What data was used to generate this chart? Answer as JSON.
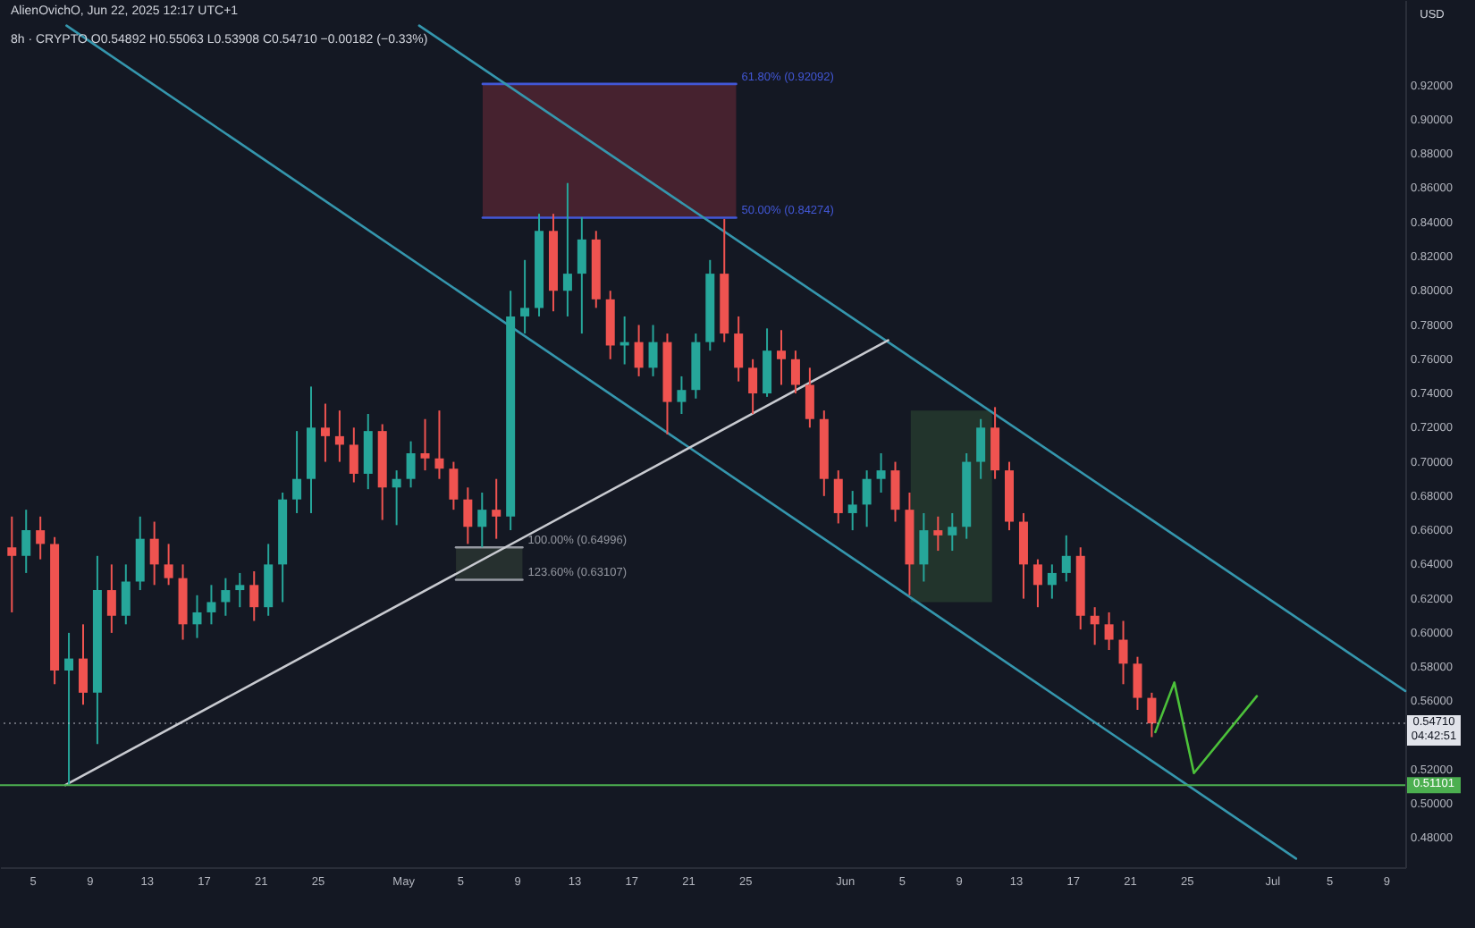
{
  "chart_data": {
    "type": "candlestick",
    "title": "AlienOvichO, Jun 22, 2025 12:17 UTC+1",
    "subtitle": "8h · CRYPTO  O0.54892 H0.55063 L0.53908 C0.54710 −0.00182 (−0.33%)",
    "ylabel": "USD",
    "xlim": [
      "2025-04-02T16:00",
      "2025-07-10T07:00"
    ],
    "ylim": [
      0.463,
      0.97
    ],
    "xticks": [
      {
        "value": "2025-04-05",
        "label": "5"
      },
      {
        "value": "2025-04-09",
        "label": "9"
      },
      {
        "value": "2025-04-13",
        "label": "13"
      },
      {
        "value": "2025-04-17",
        "label": "17"
      },
      {
        "value": "2025-04-21",
        "label": "21"
      },
      {
        "value": "2025-04-25",
        "label": "25"
      },
      {
        "value": "2025-05-01",
        "label": "May"
      },
      {
        "value": "2025-05-05",
        "label": "5"
      },
      {
        "value": "2025-05-09",
        "label": "9"
      },
      {
        "value": "2025-05-13",
        "label": "13"
      },
      {
        "value": "2025-05-17",
        "label": "17"
      },
      {
        "value": "2025-05-21",
        "label": "21"
      },
      {
        "value": "2025-05-25",
        "label": "25"
      },
      {
        "value": "2025-06-01",
        "label": "Jun"
      },
      {
        "value": "2025-06-05",
        "label": "5"
      },
      {
        "value": "2025-06-09",
        "label": "9"
      },
      {
        "value": "2025-06-13",
        "label": "13"
      },
      {
        "value": "2025-06-17",
        "label": "17"
      },
      {
        "value": "2025-06-21",
        "label": "21"
      },
      {
        "value": "2025-06-25",
        "label": "25"
      },
      {
        "value": "2025-07-01",
        "label": "Jul"
      },
      {
        "value": "2025-07-05",
        "label": "5"
      },
      {
        "value": "2025-07-09",
        "label": "9"
      }
    ],
    "yticks": [
      {
        "value": 0.48,
        "label": "0.48000"
      },
      {
        "value": 0.5,
        "label": "0.50000"
      },
      {
        "value": 0.52,
        "label": "0.52000"
      },
      {
        "value": 0.56,
        "label": "0.56000"
      },
      {
        "value": 0.58,
        "label": "0.58000"
      },
      {
        "value": 0.6,
        "label": "0.60000"
      },
      {
        "value": 0.62,
        "label": "0.62000"
      },
      {
        "value": 0.64,
        "label": "0.64000"
      },
      {
        "value": 0.66,
        "label": "0.66000"
      },
      {
        "value": 0.68,
        "label": "0.68000"
      },
      {
        "value": 0.7,
        "label": "0.70000"
      },
      {
        "value": 0.72,
        "label": "0.72000"
      },
      {
        "value": 0.74,
        "label": "0.74000"
      },
      {
        "value": 0.76,
        "label": "0.76000"
      },
      {
        "value": 0.78,
        "label": "0.78000"
      },
      {
        "value": 0.8,
        "label": "0.80000"
      },
      {
        "value": 0.82,
        "label": "0.82000"
      },
      {
        "value": 0.84,
        "label": "0.84000"
      },
      {
        "value": 0.86,
        "label": "0.86000"
      },
      {
        "value": 0.88,
        "label": "0.88000"
      },
      {
        "value": 0.9,
        "label": "0.90000"
      },
      {
        "value": 0.92,
        "label": "0.92000"
      }
    ],
    "ref_lines": [
      {
        "axis": "y",
        "value": 0.51101,
        "label": "0.51101",
        "color": "#4caf50"
      },
      {
        "axis": "y",
        "value": 0.5471,
        "label": "0.54710\n04:42:51",
        "color": "#e1e3ea",
        "line_style": "dotted"
      }
    ],
    "series": [
      {
        "type": "candlestick",
        "x": [
          "2025-04-03T12:00",
          "2025-04-04T12:00",
          "2025-04-05T12:00",
          "2025-04-06T12:00",
          "2025-04-07T12:00",
          "2025-04-08T12:00",
          "2025-04-09T12:00",
          "2025-04-10T12:00",
          "2025-04-11T12:00",
          "2025-04-12T12:00",
          "2025-04-13T12:00",
          "2025-04-14T12:00",
          "2025-04-15T12:00",
          "2025-04-16T12:00",
          "2025-04-17T12:00",
          "2025-04-18T12:00",
          "2025-04-19T12:00",
          "2025-04-20T12:00",
          "2025-04-21T12:00",
          "2025-04-22T12:00",
          "2025-04-23T12:00",
          "2025-04-24T12:00",
          "2025-04-25T12:00",
          "2025-04-26T12:00",
          "2025-04-27T12:00",
          "2025-04-28T12:00",
          "2025-04-29T12:00",
          "2025-04-30T12:00",
          "2025-05-01T12:00",
          "2025-05-02T12:00",
          "2025-05-03T12:00",
          "2025-05-04T12:00",
          "2025-05-05T12:00",
          "2025-05-06T12:00",
          "2025-05-07T12:00",
          "2025-05-08T12:00",
          "2025-05-09T12:00",
          "2025-05-10T12:00",
          "2025-05-11T12:00",
          "2025-05-12T12:00",
          "2025-05-13T12:00",
          "2025-05-14T12:00",
          "2025-05-15T12:00",
          "2025-05-16T12:00",
          "2025-05-17T12:00",
          "2025-05-18T12:00",
          "2025-05-19T12:00",
          "2025-05-20T12:00",
          "2025-05-21T12:00",
          "2025-05-22T12:00",
          "2025-05-23T12:00",
          "2025-05-24T12:00",
          "2025-05-25T12:00",
          "2025-05-26T12:00",
          "2025-05-27T12:00",
          "2025-05-28T12:00",
          "2025-05-29T12:00",
          "2025-05-30T12:00",
          "2025-05-31T12:00",
          "2025-06-01T12:00",
          "2025-06-02T12:00",
          "2025-06-03T12:00",
          "2025-06-04T12:00",
          "2025-06-05T12:00",
          "2025-06-06T12:00",
          "2025-06-07T12:00",
          "2025-06-08T12:00",
          "2025-06-09T12:00",
          "2025-06-10T12:00",
          "2025-06-11T12:00",
          "2025-06-12T12:00",
          "2025-06-13T12:00",
          "2025-06-14T12:00",
          "2025-06-15T12:00",
          "2025-06-16T12:00",
          "2025-06-17T12:00",
          "2025-06-18T12:00",
          "2025-06-19T12:00",
          "2025-06-20T12:00",
          "2025-06-21T12:00",
          "2025-06-22T12:00"
        ],
        "ohlc": [
          [
            0.65,
            0.668,
            0.612,
            0.645
          ],
          [
            0.645,
            0.672,
            0.635,
            0.66
          ],
          [
            0.66,
            0.668,
            0.643,
            0.652
          ],
          [
            0.652,
            0.656,
            0.57,
            0.578
          ],
          [
            0.578,
            0.6,
            0.51101,
            0.585
          ],
          [
            0.585,
            0.605,
            0.558,
            0.565
          ],
          [
            0.565,
            0.645,
            0.535,
            0.625
          ],
          [
            0.625,
            0.64,
            0.6,
            0.61
          ],
          [
            0.61,
            0.64,
            0.605,
            0.63
          ],
          [
            0.63,
            0.668,
            0.625,
            0.655
          ],
          [
            0.655,
            0.665,
            0.628,
            0.64
          ],
          [
            0.64,
            0.652,
            0.628,
            0.632
          ],
          [
            0.632,
            0.64,
            0.596,
            0.605
          ],
          [
            0.605,
            0.622,
            0.597,
            0.612
          ],
          [
            0.612,
            0.628,
            0.605,
            0.618
          ],
          [
            0.618,
            0.632,
            0.61,
            0.625
          ],
          [
            0.625,
            0.635,
            0.615,
            0.628
          ],
          [
            0.628,
            0.636,
            0.607,
            0.615
          ],
          [
            0.615,
            0.652,
            0.61,
            0.64
          ],
          [
            0.64,
            0.682,
            0.618,
            0.678
          ],
          [
            0.678,
            0.718,
            0.67,
            0.69
          ],
          [
            0.69,
            0.744,
            0.67,
            0.72
          ],
          [
            0.72,
            0.734,
            0.7,
            0.715
          ],
          [
            0.715,
            0.73,
            0.7,
            0.71
          ],
          [
            0.71,
            0.72,
            0.688,
            0.693
          ],
          [
            0.693,
            0.728,
            0.684,
            0.718
          ],
          [
            0.718,
            0.722,
            0.666,
            0.685
          ],
          [
            0.685,
            0.695,
            0.663,
            0.69
          ],
          [
            0.69,
            0.712,
            0.685,
            0.705
          ],
          [
            0.705,
            0.725,
            0.695,
            0.702
          ],
          [
            0.702,
            0.73,
            0.69,
            0.696
          ],
          [
            0.696,
            0.7,
            0.672,
            0.678
          ],
          [
            0.678,
            0.685,
            0.652,
            0.662
          ],
          [
            0.662,
            0.682,
            0.65,
            0.672
          ],
          [
            0.672,
            0.69,
            0.655,
            0.668
          ],
          [
            0.668,
            0.8,
            0.66,
            0.785
          ],
          [
            0.785,
            0.818,
            0.775,
            0.79
          ],
          [
            0.79,
            0.845,
            0.785,
            0.835
          ],
          [
            0.835,
            0.845,
            0.788,
            0.8
          ],
          [
            0.8,
            0.863,
            0.785,
            0.81
          ],
          [
            0.81,
            0.843,
            0.775,
            0.83
          ],
          [
            0.83,
            0.835,
            0.79,
            0.795
          ],
          [
            0.795,
            0.8,
            0.76,
            0.768
          ],
          [
            0.768,
            0.785,
            0.757,
            0.77
          ],
          [
            0.77,
            0.78,
            0.75,
            0.755
          ],
          [
            0.755,
            0.78,
            0.75,
            0.77
          ],
          [
            0.77,
            0.775,
            0.716,
            0.735
          ],
          [
            0.735,
            0.75,
            0.728,
            0.742
          ],
          [
            0.742,
            0.775,
            0.737,
            0.77
          ],
          [
            0.77,
            0.818,
            0.765,
            0.81
          ],
          [
            0.81,
            0.842,
            0.77,
            0.775
          ],
          [
            0.775,
            0.785,
            0.747,
            0.755
          ],
          [
            0.755,
            0.76,
            0.728,
            0.74
          ],
          [
            0.74,
            0.778,
            0.738,
            0.765
          ],
          [
            0.765,
            0.777,
            0.745,
            0.76
          ],
          [
            0.76,
            0.765,
            0.74,
            0.745
          ],
          [
            0.745,
            0.755,
            0.72,
            0.725
          ],
          [
            0.725,
            0.73,
            0.68,
            0.69
          ],
          [
            0.69,
            0.695,
            0.664,
            0.67
          ],
          [
            0.67,
            0.683,
            0.66,
            0.675
          ],
          [
            0.675,
            0.695,
            0.662,
            0.69
          ],
          [
            0.69,
            0.705,
            0.682,
            0.695
          ],
          [
            0.695,
            0.7,
            0.665,
            0.672
          ],
          [
            0.672,
            0.682,
            0.622,
            0.64
          ],
          [
            0.64,
            0.67,
            0.63,
            0.66
          ],
          [
            0.66,
            0.668,
            0.648,
            0.657
          ],
          [
            0.657,
            0.67,
            0.648,
            0.662
          ],
          [
            0.662,
            0.705,
            0.655,
            0.7
          ],
          [
            0.7,
            0.725,
            0.69,
            0.72
          ],
          [
            0.72,
            0.732,
            0.69,
            0.695
          ],
          [
            0.695,
            0.7,
            0.66,
            0.665
          ],
          [
            0.665,
            0.67,
            0.62,
            0.64
          ],
          [
            0.64,
            0.643,
            0.615,
            0.628
          ],
          [
            0.628,
            0.64,
            0.62,
            0.635
          ],
          [
            0.635,
            0.657,
            0.63,
            0.645
          ],
          [
            0.645,
            0.65,
            0.602,
            0.61
          ],
          [
            0.61,
            0.615,
            0.593,
            0.605
          ],
          [
            0.605,
            0.612,
            0.59,
            0.596
          ],
          [
            0.596,
            0.607,
            0.57,
            0.582
          ],
          [
            0.582,
            0.586,
            0.555,
            0.562
          ],
          [
            0.562,
            0.565,
            0.53908,
            0.5471
          ]
        ],
        "colors": [
          "#ef5350",
          "#26a69a",
          "#ef5350",
          "#ef5350",
          "#26a69a",
          "#ef5350",
          "#26a69a",
          "#ef5350",
          "#26a69a",
          "#26a69a",
          "#ef5350",
          "#ef5350",
          "#ef5350",
          "#26a69a",
          "#26a69a",
          "#26a69a",
          "#26a69a",
          "#ef5350",
          "#26a69a",
          "#26a69a",
          "#26a69a",
          "#26a69a",
          "#ef5350",
          "#ef5350",
          "#ef5350",
          "#26a69a",
          "#ef5350",
          "#26a69a",
          "#26a69a",
          "#ef5350",
          "#ef5350",
          "#ef5350",
          "#ef5350",
          "#26a69a",
          "#ef5350",
          "#26a69a",
          "#26a69a",
          "#26a69a",
          "#ef5350",
          "#26a69a",
          "#26a69a",
          "#ef5350",
          "#ef5350",
          "#26a69a",
          "#ef5350",
          "#26a69a",
          "#ef5350",
          "#26a69a",
          "#26a69a",
          "#26a69a",
          "#ef5350",
          "#ef5350",
          "#ef5350",
          "#26a69a",
          "#ef5350",
          "#ef5350",
          "#ef5350",
          "#ef5350",
          "#ef5350",
          "#26a69a",
          "#26a69a",
          "#26a69a",
          "#ef5350",
          "#ef5350",
          "#26a69a",
          "#ef5350",
          "#26a69a",
          "#26a69a",
          "#26a69a",
          "#ef5350",
          "#ef5350",
          "#ef5350",
          "#ef5350",
          "#26a69a",
          "#26a69a",
          "#ef5350",
          "#ef5350",
          "#ef5350",
          "#ef5350",
          "#ef5350",
          "#ef5350"
        ]
      },
      {
        "type": "line",
        "color": "#46222f",
        "x": [
          "2025-05-06T13:00",
          "2025-05-24T08:00"
        ],
        "values": [
          null,
          null
        ],
        "lower": [
          0.84274,
          0.84274
        ],
        "upper": [
          0.92092,
          0.92092
        ]
      },
      {
        "type": "line",
        "name": "61.80% (0.92092)",
        "color": "#4257d6",
        "x": [
          "2025-05-06T13:00",
          "2025-05-24T08:00"
        ],
        "values": [
          0.92092,
          0.92092
        ]
      },
      {
        "type": "line",
        "name": "50.00% (0.84274)",
        "color": "#4257d6",
        "x": [
          "2025-05-06T13:00",
          "2025-05-24T08:00"
        ],
        "values": [
          0.84274,
          0.84274
        ]
      },
      {
        "type": "line",
        "color": "#26302f",
        "x": [
          "2025-05-04T16:00",
          "2025-05-09T08:00"
        ],
        "values": [
          null,
          null
        ],
        "lower": [
          0.63107,
          0.63107
        ],
        "upper": [
          0.64996,
          0.64996
        ]
      },
      {
        "type": "line",
        "name": "100.00% (0.64996)",
        "color": "#9598a1",
        "x": [
          "2025-05-04T16:00",
          "2025-05-09T08:00"
        ],
        "values": [
          0.64996,
          0.64996
        ]
      },
      {
        "type": "line",
        "name": "123.60% (0.63107)",
        "color": "#9598a1",
        "x": [
          "2025-05-04T16:00",
          "2025-05-09T08:00"
        ],
        "values": [
          0.63107,
          0.63107
        ]
      },
      {
        "type": "line",
        "color": "#22342c",
        "x": [
          "2025-06-05T14:00",
          "2025-06-11T07:00"
        ],
        "values": [
          null,
          null
        ],
        "lower": [
          0.618,
          0.618
        ],
        "upper": [
          0.73,
          0.73
        ]
      },
      {
        "type": "line",
        "color": "#3596ad",
        "x": [
          "2025-05-02T02:00",
          "2025-07-10T07:00"
        ],
        "values": [
          0.955,
          0.566
        ]
      },
      {
        "type": "line",
        "color": "#3596ad",
        "x": [
          "2025-04-07T08:00",
          "2025-07-02T15:00"
        ],
        "values": [
          0.955,
          0.468
        ]
      },
      {
        "type": "line",
        "color": "#c8cad0",
        "x": [
          "2025-04-07T06:00",
          "2025-06-04T00:00"
        ],
        "values": [
          0.51101,
          0.771
        ]
      },
      {
        "type": "line",
        "color": "#4cc13a",
        "x": [
          "2025-06-22T18:00",
          "2025-06-24T02:00",
          "2025-06-25T11:00",
          "2025-06-29T21:00"
        ],
        "values": [
          0.542,
          0.571,
          0.518,
          0.563
        ]
      }
    ]
  }
}
